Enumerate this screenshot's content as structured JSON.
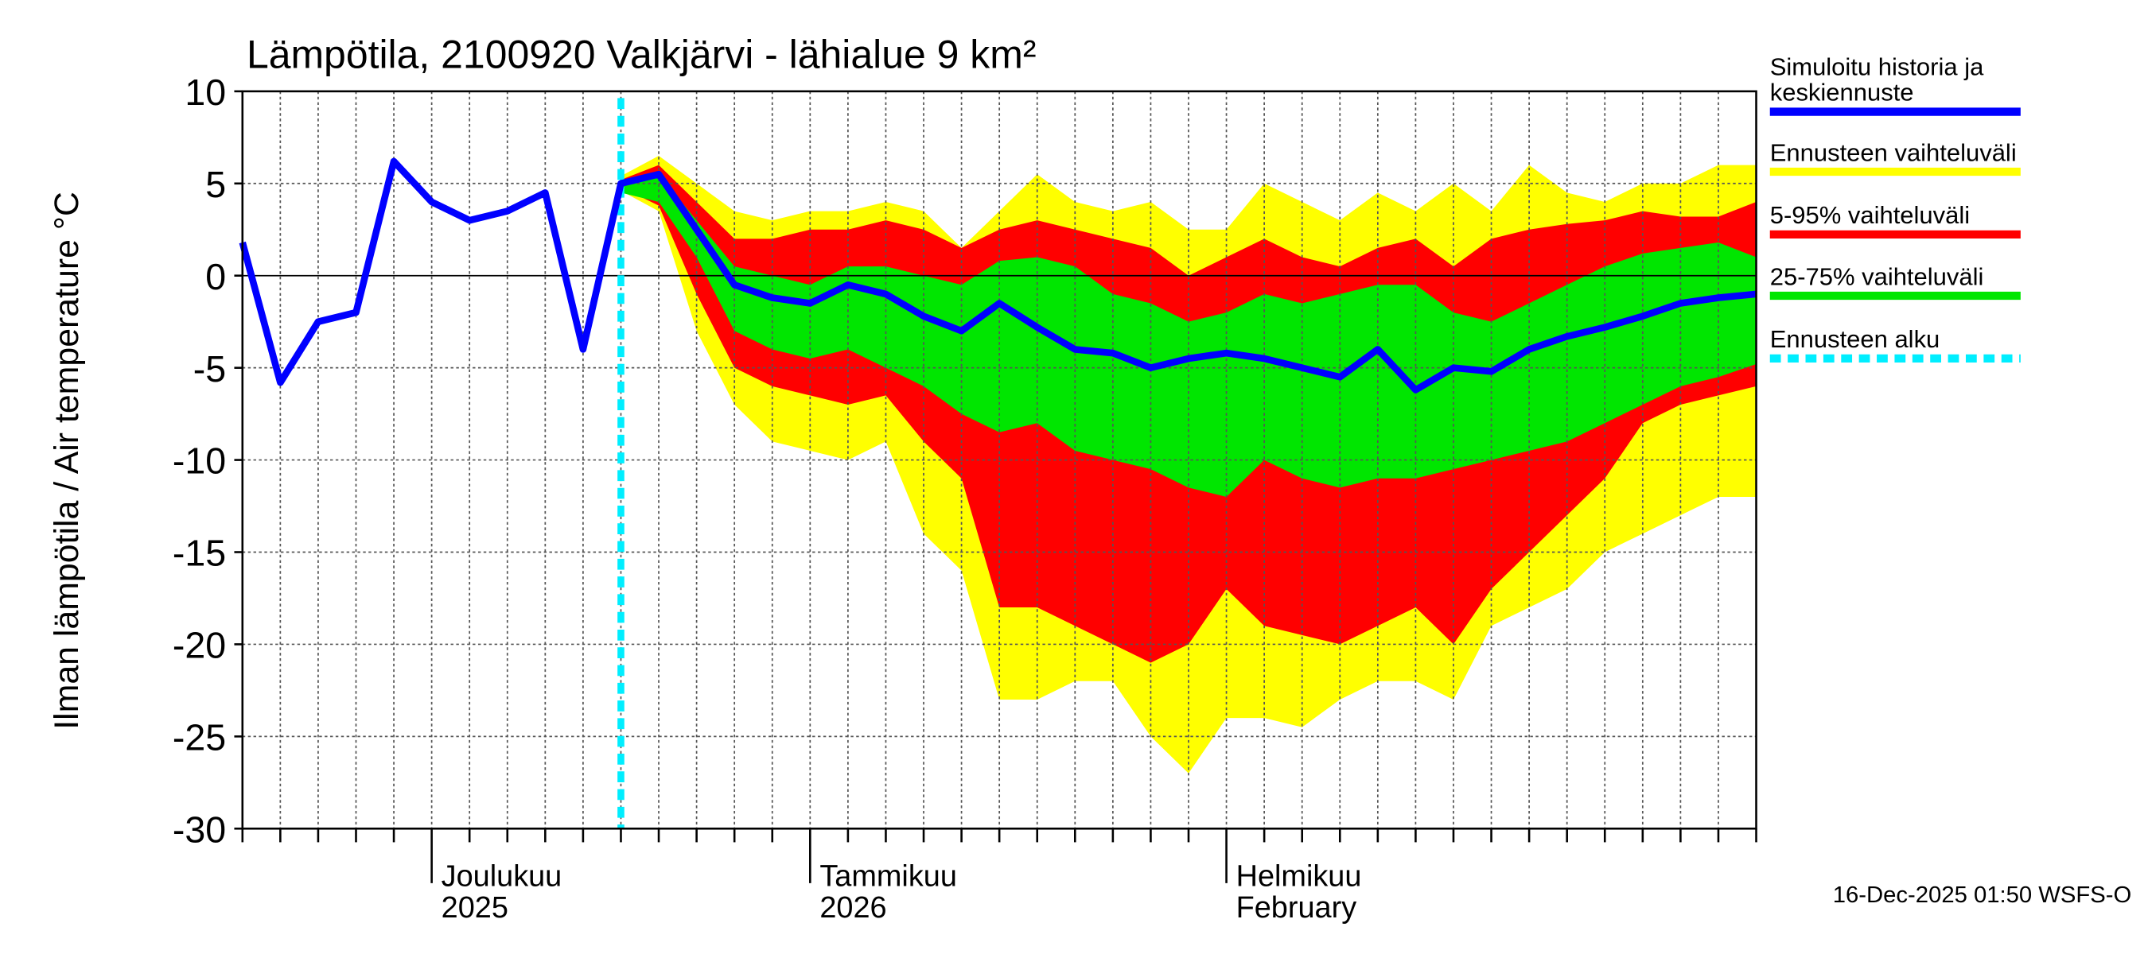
{
  "chart_data": {
    "type": "line",
    "title": "Lämpötila, 2100920 Valkjärvi - lähialue 9 km²",
    "y_label": "Ilman lämpötila / Air temperature   °C",
    "footer": "16-Dec-2025 01:50 WSFS-O",
    "categories": [
      null,
      null,
      null,
      null,
      null,
      "Joulukuu\n2025",
      null,
      null,
      null,
      null,
      null,
      null,
      null,
      null,
      null,
      "Tammikuu\n2026",
      null,
      null,
      null,
      null,
      null,
      null,
      null,
      null,
      null,
      null,
      "Helmikuu\nFebruary",
      null,
      null,
      null,
      null,
      null,
      null,
      null,
      null,
      null,
      null,
      null,
      null,
      null,
      null
    ],
    "ylim": [
      -30,
      10
    ],
    "yticks": [
      -30,
      -25,
      -20,
      -15,
      -10,
      -5,
      0,
      5,
      10
    ],
    "grid": true,
    "bands": [
      {
        "name": "Ennusteen vaihteluväli",
        "color": "#ffff00",
        "upper": [
          null,
          null,
          null,
          null,
          null,
          null,
          null,
          null,
          null,
          null,
          5.4,
          6.5,
          5,
          3.5,
          3,
          3.5,
          3.5,
          4,
          3.5,
          1.5,
          3.5,
          5.5,
          4,
          3.5,
          4,
          2.5,
          2.5,
          5,
          4,
          3,
          4.5,
          3.5,
          5,
          3.5,
          6,
          4.5,
          4,
          5,
          5,
          6,
          6
        ],
        "lower": [
          null,
          null,
          null,
          null,
          null,
          null,
          null,
          null,
          null,
          null,
          4.6,
          3.5,
          -3,
          -7,
          -9,
          -9.5,
          -10,
          -9,
          -14,
          -16,
          -23,
          -23,
          -22,
          -22,
          -25,
          -27,
          -24,
          -24,
          -24.5,
          -23,
          -22,
          -22,
          -23,
          -19,
          -18,
          -17,
          -15,
          -14,
          -13,
          -12,
          -12
        ]
      },
      {
        "name": "5-95% vaihteluväli",
        "color": "#ff0000",
        "upper": [
          null,
          null,
          null,
          null,
          null,
          null,
          null,
          null,
          null,
          null,
          5.2,
          6,
          4,
          2,
          2,
          2.5,
          2.5,
          3,
          2.5,
          1.5,
          2.5,
          3,
          2.5,
          2,
          1.5,
          0,
          1,
          2,
          1,
          0.5,
          1.5,
          2,
          0.5,
          2,
          2.5,
          2.8,
          3,
          3.5,
          3.2,
          3.2,
          4
        ],
        "lower": [
          null,
          null,
          null,
          null,
          null,
          null,
          null,
          null,
          null,
          null,
          4.8,
          3.8,
          -1,
          -5,
          -6,
          -6.5,
          -7,
          -6.5,
          -9,
          -11,
          -18,
          -18,
          -19,
          -20,
          -21,
          -20,
          -17,
          -19,
          -19.5,
          -20,
          -19,
          -18,
          -20,
          -17,
          -15,
          -13,
          -11,
          -8,
          -7,
          -6.5,
          -6
        ]
      },
      {
        "name": "25-75% vaihteluväli",
        "color": "#00e600",
        "upper": [
          null,
          null,
          null,
          null,
          null,
          null,
          null,
          null,
          null,
          null,
          5.2,
          5.5,
          3,
          0.5,
          0,
          -0.5,
          0.5,
          0.5,
          0,
          -0.5,
          0.8,
          1,
          0.5,
          -1,
          -1.5,
          -2.5,
          -2,
          -1,
          -1.5,
          -1,
          -0.5,
          -0.5,
          -2,
          -2.5,
          -1.5,
          -0.5,
          0.5,
          1.2,
          1.5,
          1.8,
          1
        ],
        "lower": [
          null,
          null,
          null,
          null,
          null,
          null,
          null,
          null,
          null,
          null,
          4.5,
          4,
          1,
          -3,
          -4,
          -4.5,
          -4,
          -5,
          -6,
          -7.5,
          -8.5,
          -8,
          -9.5,
          -10,
          -10.5,
          -11.5,
          -12,
          -10,
          -11,
          -11.5,
          -11,
          -11,
          -10.5,
          -10,
          -9.5,
          -9,
          -8,
          -7,
          -6,
          -5.5,
          -4.8
        ]
      }
    ],
    "series": [
      {
        "name": "Simuloitu historia ja\nkeskiennuste",
        "color": "#0000ff",
        "values": [
          1.8,
          -5.8,
          -2.5,
          -2,
          6.2,
          4,
          3,
          3.5,
          4.5,
          -4,
          5,
          5.5,
          2.5,
          -0.5,
          -1.2,
          -1.5,
          -0.5,
          -1,
          -2.2,
          -3,
          -1.5,
          -2.8,
          -4,
          -4.2,
          -5,
          -4.5,
          -4.2,
          -4.5,
          -5,
          -5.5,
          -4,
          -6.2,
          -5,
          -5.2,
          -4,
          -3.3,
          -2.8,
          -2.2,
          -1.5,
          -1.2,
          -1
        ]
      }
    ],
    "forecast_start": {
      "name": "Ennusteen alku",
      "color": "#00eeff",
      "category_index": 10
    }
  }
}
